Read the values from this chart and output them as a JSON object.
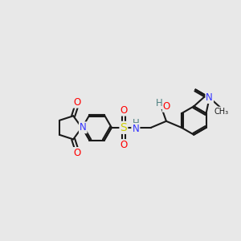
{
  "background_color": "#e8e8e8",
  "bond_color": "#1a1a1a",
  "bond_width": 1.5,
  "atom_colors": {
    "N": "#3333ff",
    "O": "#ff0000",
    "S": "#cccc00",
    "H": "#4d7f7f",
    "C": "#1a1a1a"
  },
  "font_size": 8.5,
  "font_size_small": 7.0
}
